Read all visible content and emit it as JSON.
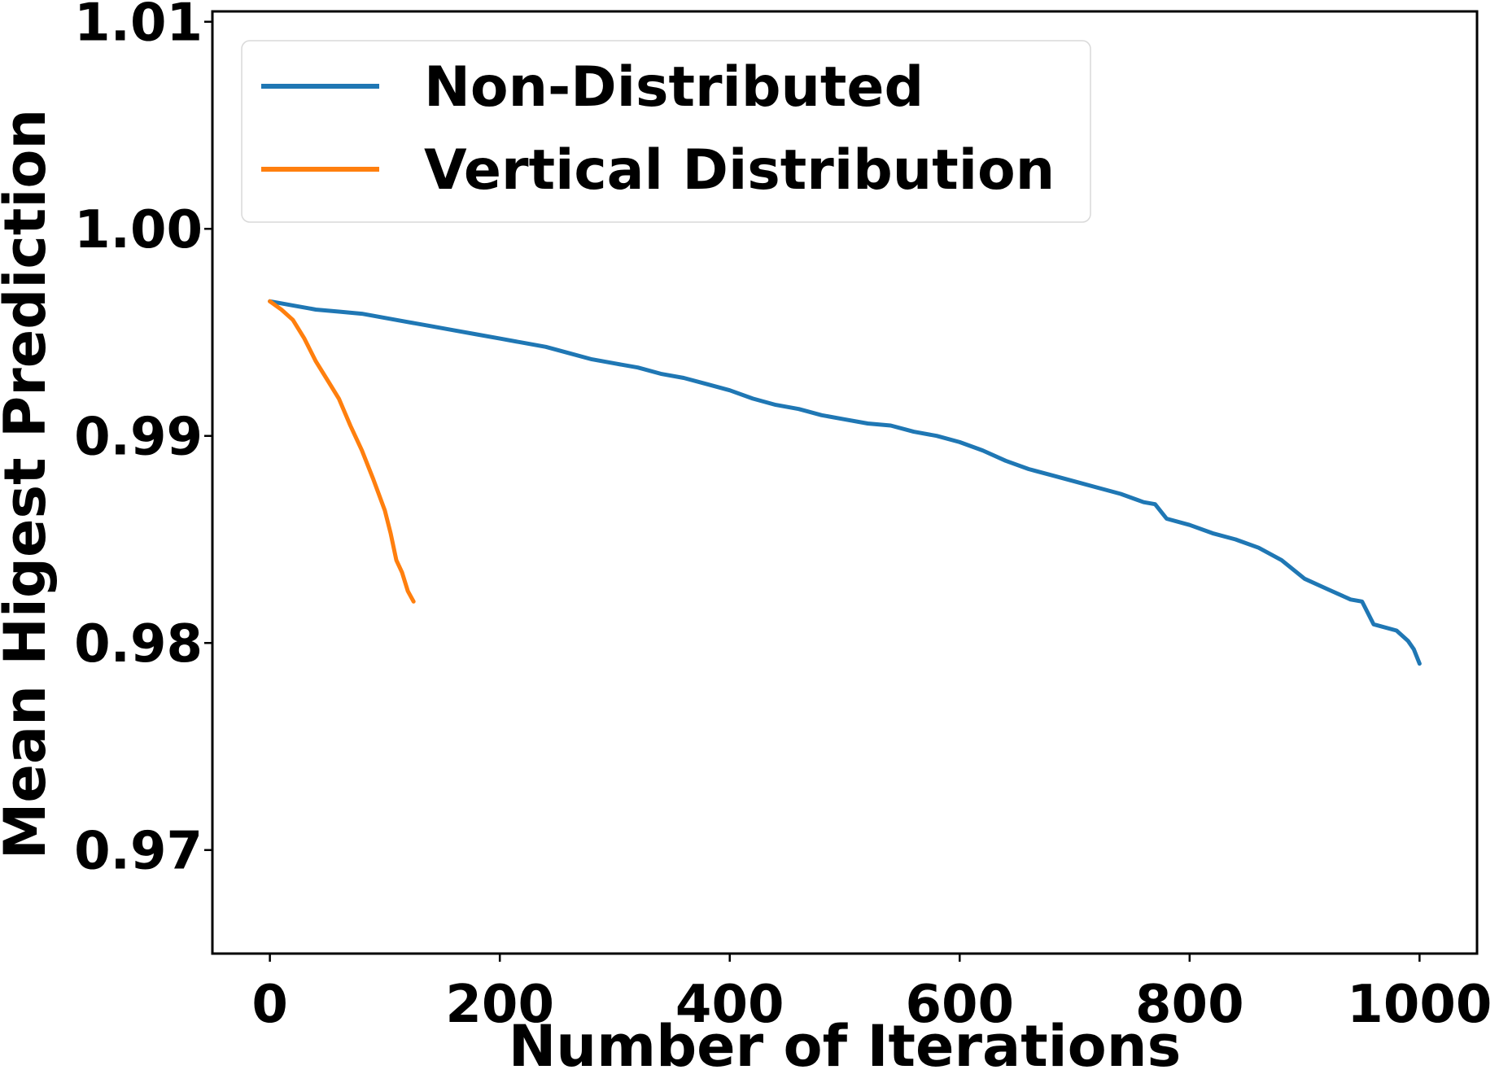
{
  "chart_data": {
    "type": "line",
    "title": "",
    "xlabel": "Number of Iterations",
    "ylabel": "Mean Higest Prediction",
    "xlim": [
      -50,
      1050
    ],
    "ylim": [
      0.965,
      1.0105
    ],
    "xticks": [
      0,
      200,
      400,
      600,
      800,
      1000
    ],
    "xtick_labels": [
      "0",
      "200",
      "400",
      "600",
      "800",
      "1000"
    ],
    "yticks": [
      0.97,
      0.98,
      0.99,
      1.0,
      1.01
    ],
    "ytick_labels": [
      "0.97",
      "0.98",
      "0.99",
      "1.00",
      "1.01"
    ],
    "grid": false,
    "legend_position": "top-left",
    "series": [
      {
        "name": "Non-Distributed",
        "color": "#1f77b4",
        "x": [
          0,
          20,
          40,
          60,
          80,
          100,
          120,
          140,
          160,
          180,
          200,
          220,
          240,
          260,
          280,
          300,
          320,
          340,
          360,
          380,
          400,
          420,
          440,
          460,
          480,
          500,
          520,
          540,
          560,
          580,
          600,
          620,
          640,
          660,
          680,
          700,
          720,
          740,
          760,
          770,
          780,
          800,
          820,
          840,
          860,
          880,
          900,
          920,
          940,
          950,
          960,
          980,
          990,
          995,
          1000
        ],
        "y": [
          0.9965,
          0.9963,
          0.9961,
          0.996,
          0.9959,
          0.9957,
          0.9955,
          0.9953,
          0.9951,
          0.9949,
          0.9947,
          0.9945,
          0.9943,
          0.994,
          0.9937,
          0.9935,
          0.9933,
          0.993,
          0.9928,
          0.9925,
          0.9922,
          0.9918,
          0.9915,
          0.9913,
          0.991,
          0.9908,
          0.9906,
          0.9905,
          0.9902,
          0.99,
          0.9897,
          0.9893,
          0.9888,
          0.9884,
          0.9881,
          0.9878,
          0.9875,
          0.9872,
          0.9868,
          0.9867,
          0.986,
          0.9857,
          0.9853,
          0.985,
          0.9846,
          0.984,
          0.9831,
          0.9826,
          0.9821,
          0.982,
          0.9809,
          0.9806,
          0.9801,
          0.9797,
          0.979
        ]
      },
      {
        "name": "Vertical Distribution",
        "color": "#ff7f0e",
        "x": [
          0,
          10,
          20,
          30,
          40,
          50,
          60,
          70,
          80,
          90,
          100,
          105,
          110,
          115,
          120,
          125
        ],
        "y": [
          0.9965,
          0.9961,
          0.9956,
          0.9947,
          0.9936,
          0.9927,
          0.9918,
          0.9905,
          0.9893,
          0.9879,
          0.9864,
          0.9853,
          0.984,
          0.9834,
          0.9825,
          0.982
        ]
      }
    ]
  }
}
